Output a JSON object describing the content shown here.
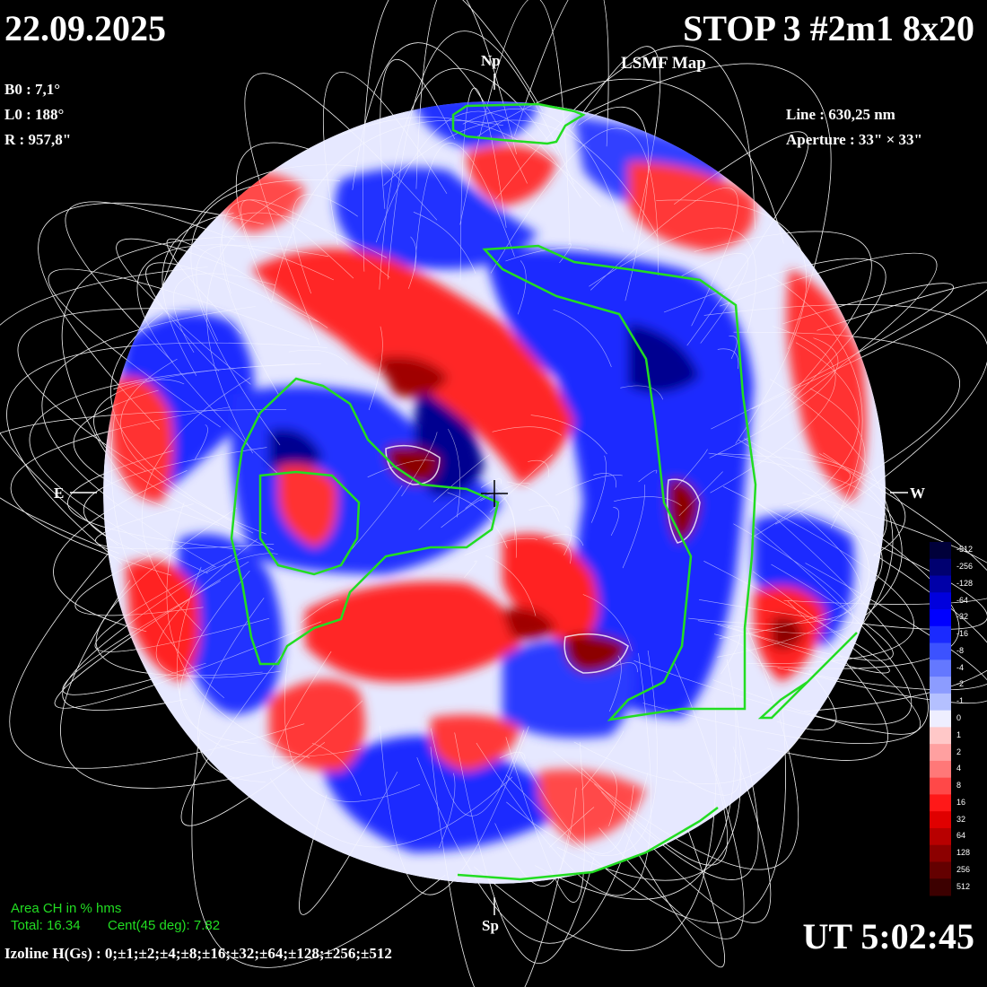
{
  "header": {
    "date": "22.09.2025",
    "station": "STOP 3 #2m1 8x20",
    "map_type": "LSMF  Map"
  },
  "params_left": {
    "b0": "B0 : 7,1°",
    "l0": "L0 : 188°",
    "radius": "R  : 957,8\""
  },
  "params_right": {
    "line": "Line :  630,25 nm",
    "aperture": "Aperture : 33\" × 33\""
  },
  "directions": {
    "north": "Np",
    "south": "Sp",
    "east": "E",
    "west": "W"
  },
  "coronal_hole": {
    "heading": "Area CH in % hms",
    "total": "Total: 16.34",
    "central": "Cent(45 deg): 7.82"
  },
  "footer": {
    "isolines": "Izoline H(Gs) : 0;±1;±2;±4;±8;±16;±32;±64;±128;±256;±512",
    "time": "UT 5:02:45"
  },
  "color_scale": {
    "labels": [
      "-512",
      "-256",
      "-128",
      "-64",
      "-32",
      "-16",
      "-8",
      "-4",
      "-2",
      "-1",
      "0",
      "1",
      "2",
      "4",
      "8",
      "16",
      "32",
      "64",
      "128",
      "256",
      "512"
    ],
    "colors": [
      "#00003a",
      "#000070",
      "#0000a8",
      "#0000dd",
      "#0000ff",
      "#1a2aff",
      "#3c52ff",
      "#6478ff",
      "#8c9cff",
      "#b4c0ff",
      "#eeeeff",
      "#ffc8c8",
      "#ffa0a0",
      "#ff7878",
      "#ff4848",
      "#ff1818",
      "#e00000",
      "#b80000",
      "#8c0000",
      "#640000",
      "#3c0000"
    ]
  },
  "colors": {
    "contour_green": "#22dd22",
    "field_lines": "#ffffff"
  }
}
